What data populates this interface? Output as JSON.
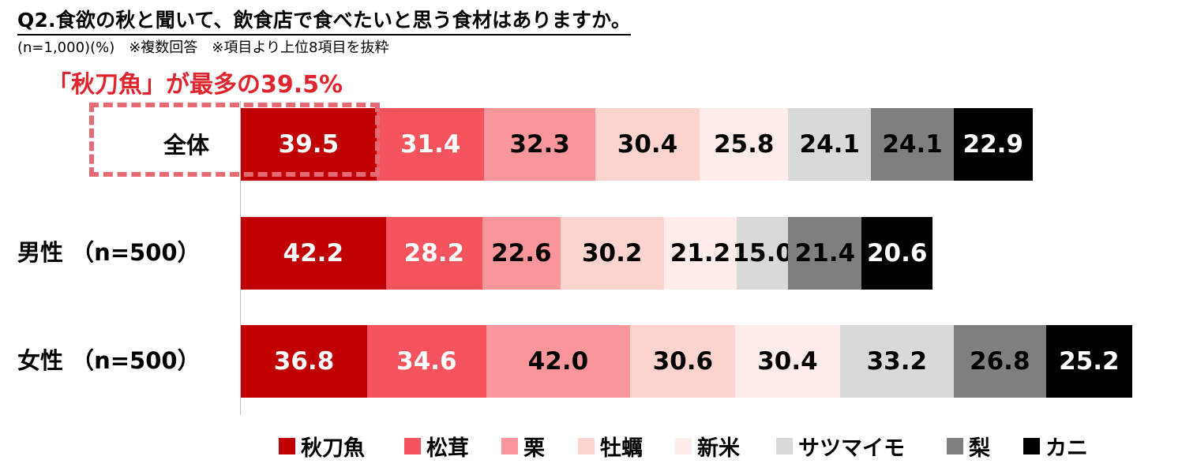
{
  "title": "Q2.食欲の秋と聞いて、飲食店で食べたいと思う食材はありますか。",
  "note": "(n=1,000)(%)　※複数回答　※項目より上位8項目を抜粋",
  "highlight": "「秋刀魚」が最多の39.5%",
  "chart_data": {
    "type": "bar",
    "orientation": "horizontal",
    "stacked": true,
    "categories": [
      "全体",
      "男性 （n=500）",
      "女性 （n=500）"
    ],
    "series": [
      {
        "name": "秋刀魚",
        "color": "#c00000",
        "text_color": "#ffffff",
        "values": [
          39.5,
          42.2,
          36.8
        ]
      },
      {
        "name": "松茸",
        "color": "#f5535e",
        "text_color": "#ffffff",
        "values": [
          31.4,
          28.2,
          34.6
        ]
      },
      {
        "name": "栗",
        "color": "#f9969c",
        "text_color": "#000000",
        "values": [
          32.3,
          22.6,
          42.0
        ]
      },
      {
        "name": "牡蠣",
        "color": "#fcd3cf",
        "text_color": "#000000",
        "values": [
          30.4,
          30.2,
          30.6
        ]
      },
      {
        "name": "新米",
        "color": "#fdecea",
        "text_color": "#000000",
        "values": [
          25.8,
          21.2,
          30.4
        ]
      },
      {
        "name": "サツマイモ",
        "color": "#d9d9d9",
        "text_color": "#000000",
        "values": [
          24.1,
          15.0,
          33.2
        ]
      },
      {
        "name": "梨",
        "color": "#7f7f7f",
        "text_color": "#000000",
        "values": [
          24.1,
          21.4,
          26.8
        ]
      },
      {
        "name": "カニ",
        "color": "#000000",
        "text_color": "#ffffff",
        "values": [
          22.9,
          20.6,
          25.2
        ]
      }
    ],
    "highlighted_category": "全体",
    "legend_position": "bottom",
    "grid": false
  }
}
